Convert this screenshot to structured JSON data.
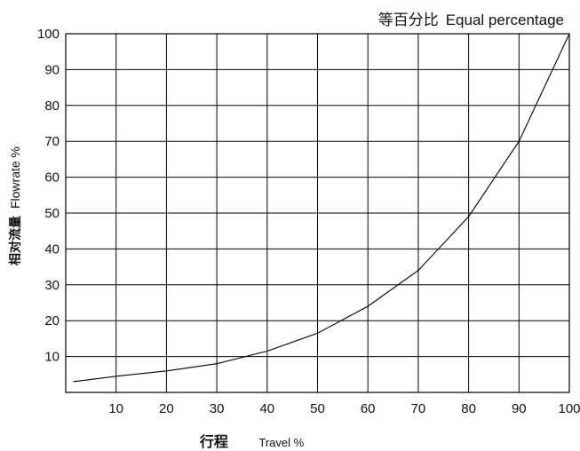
{
  "chart_data": {
    "type": "line",
    "title_cn": "等百分比",
    "title_en": "Equal percentage",
    "xlabel_cn": "行程",
    "xlabel_en": "Travel %",
    "ylabel_cn": "相对流量",
    "ylabel_en": "Flowrate %",
    "xlim": [
      0,
      100
    ],
    "ylim": [
      0,
      100
    ],
    "grid": true,
    "x_ticks": [
      10,
      20,
      30,
      40,
      50,
      60,
      70,
      80,
      90,
      100
    ],
    "y_ticks": [
      10,
      20,
      30,
      40,
      50,
      60,
      70,
      80,
      90,
      100
    ],
    "series": [
      {
        "x": [
          1.5,
          10,
          20,
          30,
          40,
          50,
          60,
          70,
          80,
          90,
          100
        ],
        "y": [
          3,
          4.5,
          6,
          8,
          11.5,
          16.5,
          24,
          34,
          49,
          70,
          100
        ]
      }
    ]
  }
}
